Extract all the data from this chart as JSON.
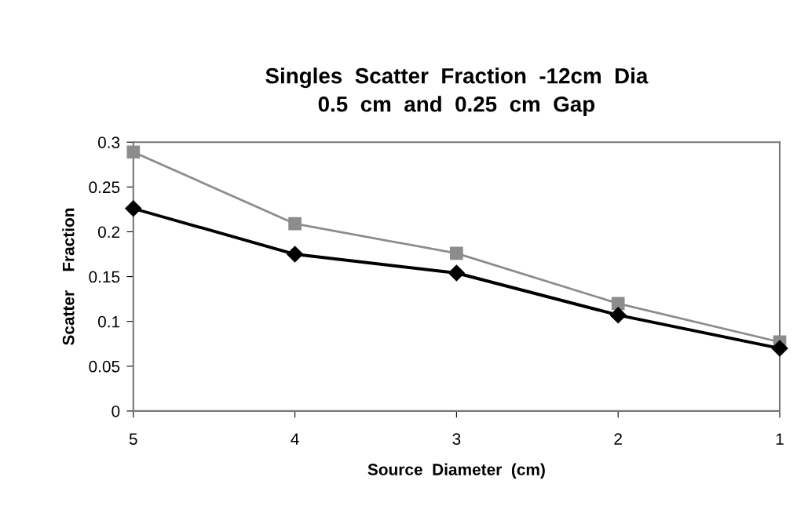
{
  "chart_data": {
    "type": "line",
    "title": "Singles  Scatter  Fraction  -12cm  Dia\n0.5  cm  and  0.25  cm  Gap",
    "xlabel": "Source  Diameter  (cm)",
    "ylabel": "Scatter    Fraction",
    "categories": [
      "5",
      "4",
      "3",
      "2",
      "1"
    ],
    "series": [
      {
        "color": "#8c8c8c",
        "marker": "square",
        "values": [
          0.289,
          0.209,
          0.176,
          0.12,
          0.077
        ]
      },
      {
        "color": "#000000",
        "marker": "diamond",
        "values": [
          0.226,
          0.175,
          0.154,
          0.107,
          0.07
        ]
      }
    ],
    "ylim": [
      0,
      0.3
    ],
    "yticks": [
      0,
      0.05,
      0.1,
      0.15,
      0.2,
      0.25,
      0.3
    ],
    "grid": false
  }
}
